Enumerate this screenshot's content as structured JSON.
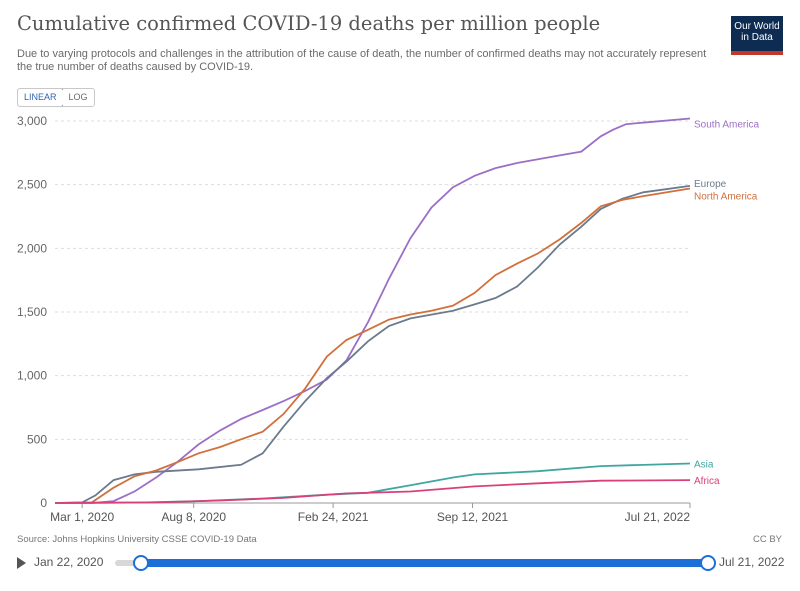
{
  "header": {
    "title": "Cumulative confirmed COVID-19 deaths per million people",
    "subtitle": "Due to varying protocols and challenges in the attribution of the cause of death, the number of confirmed deaths may not accurately represent the true number of deaths caused by COVID-19.",
    "logo_text": "Our World in Data"
  },
  "controls": {
    "linear_label": "LINEAR",
    "log_label": "LOG"
  },
  "footer": {
    "source": "Source: Johns Hopkins University CSSE COVID-19 Data",
    "license": "CC BY"
  },
  "timeline": {
    "start_label": "Jan 22, 2020",
    "end_label": "Jul 21, 2022"
  },
  "colors": {
    "south_america": "#9c6fc6",
    "europe": "#6b7a8c",
    "north_america": "#d0703c",
    "asia": "#3fa6a0",
    "africa": "#d9407a",
    "grid": "#dddddd",
    "accent": "#1d6fd8"
  },
  "chart_data": {
    "type": "line",
    "title": "Cumulative confirmed COVID-19 deaths per million people",
    "xlabel": "",
    "ylabel": "",
    "ylim": [
      0,
      3000
    ],
    "yticks": [
      0,
      500,
      1000,
      1500,
      2000,
      2500,
      3000
    ],
    "ytick_labels": [
      "0",
      "500",
      "1,000",
      "1,500",
      "2,000",
      "2,500",
      "3,000"
    ],
    "xlim": [
      "2020-01-22",
      "2022-07-21"
    ],
    "xticks": [
      "2020-03-01",
      "2020-08-08",
      "2021-02-24",
      "2021-09-12",
      "2022-07-21"
    ],
    "xtick_labels": [
      "Mar 1, 2020",
      "Aug 8, 2020",
      "Feb 24, 2021",
      "Sep 12, 2021",
      "Jul 21, 2022"
    ],
    "grid": true,
    "legend": "right",
    "series": [
      {
        "name": "South America",
        "points": [
          [
            "2020-01-22",
            0
          ],
          [
            "2020-03-15",
            0
          ],
          [
            "2020-04-15",
            15
          ],
          [
            "2020-05-15",
            90
          ],
          [
            "2020-06-15",
            200
          ],
          [
            "2020-07-15",
            320
          ],
          [
            "2020-08-15",
            460
          ],
          [
            "2020-09-15",
            570
          ],
          [
            "2020-10-15",
            660
          ],
          [
            "2020-11-15",
            730
          ],
          [
            "2020-12-15",
            800
          ],
          [
            "2021-01-15",
            880
          ],
          [
            "2021-02-15",
            970
          ],
          [
            "2021-03-15",
            1120
          ],
          [
            "2021-04-15",
            1420
          ],
          [
            "2021-05-15",
            1760
          ],
          [
            "2021-06-15",
            2080
          ],
          [
            "2021-07-15",
            2320
          ],
          [
            "2021-08-15",
            2480
          ],
          [
            "2021-09-15",
            2570
          ],
          [
            "2021-10-15",
            2630
          ],
          [
            "2021-11-15",
            2670
          ],
          [
            "2021-12-15",
            2700
          ],
          [
            "2022-01-15",
            2730
          ],
          [
            "2022-02-15",
            2760
          ],
          [
            "2022-03-15",
            2880
          ],
          [
            "2022-04-01",
            2930
          ],
          [
            "2022-04-20",
            2975
          ],
          [
            "2022-05-20",
            2990
          ],
          [
            "2022-07-21",
            3020
          ]
        ]
      },
      {
        "name": "Europe",
        "points": [
          [
            "2020-01-22",
            0
          ],
          [
            "2020-03-01",
            5
          ],
          [
            "2020-03-20",
            60
          ],
          [
            "2020-04-15",
            180
          ],
          [
            "2020-05-15",
            225
          ],
          [
            "2020-06-15",
            245
          ],
          [
            "2020-08-15",
            265
          ],
          [
            "2020-10-15",
            300
          ],
          [
            "2020-11-15",
            390
          ],
          [
            "2020-12-15",
            600
          ],
          [
            "2021-01-15",
            800
          ],
          [
            "2021-02-15",
            980
          ],
          [
            "2021-03-15",
            1110
          ],
          [
            "2021-04-15",
            1270
          ],
          [
            "2021-05-15",
            1390
          ],
          [
            "2021-06-15",
            1450
          ],
          [
            "2021-08-15",
            1510
          ],
          [
            "2021-09-15",
            1560
          ],
          [
            "2021-10-15",
            1610
          ],
          [
            "2021-11-15",
            1700
          ],
          [
            "2021-12-15",
            1850
          ],
          [
            "2022-01-15",
            2030
          ],
          [
            "2022-02-15",
            2170
          ],
          [
            "2022-03-15",
            2310
          ],
          [
            "2022-04-15",
            2390
          ],
          [
            "2022-05-15",
            2440
          ],
          [
            "2022-07-21",
            2490
          ]
        ]
      },
      {
        "name": "North America",
        "points": [
          [
            "2020-01-22",
            0
          ],
          [
            "2020-03-15",
            5
          ],
          [
            "2020-04-15",
            120
          ],
          [
            "2020-05-15",
            210
          ],
          [
            "2020-06-15",
            255
          ],
          [
            "2020-07-15",
            320
          ],
          [
            "2020-08-15",
            390
          ],
          [
            "2020-09-15",
            440
          ],
          [
            "2020-10-15",
            500
          ],
          [
            "2020-11-15",
            560
          ],
          [
            "2020-12-15",
            700
          ],
          [
            "2021-01-15",
            900
          ],
          [
            "2021-02-15",
            1150
          ],
          [
            "2021-03-15",
            1280
          ],
          [
            "2021-04-15",
            1360
          ],
          [
            "2021-05-15",
            1440
          ],
          [
            "2021-06-15",
            1480
          ],
          [
            "2021-07-15",
            1510
          ],
          [
            "2021-08-15",
            1550
          ],
          [
            "2021-09-15",
            1650
          ],
          [
            "2021-10-15",
            1790
          ],
          [
            "2021-11-15",
            1880
          ],
          [
            "2021-12-15",
            1960
          ],
          [
            "2022-01-15",
            2070
          ],
          [
            "2022-02-15",
            2200
          ],
          [
            "2022-03-15",
            2330
          ],
          [
            "2022-04-15",
            2380
          ],
          [
            "2022-05-15",
            2410
          ],
          [
            "2022-07-21",
            2470
          ]
        ]
      },
      {
        "name": "Asia",
        "points": [
          [
            "2020-01-22",
            0
          ],
          [
            "2020-05-15",
            3
          ],
          [
            "2020-08-15",
            15
          ],
          [
            "2020-11-15",
            35
          ],
          [
            "2021-02-15",
            65
          ],
          [
            "2021-04-15",
            80
          ],
          [
            "2021-06-15",
            140
          ],
          [
            "2021-08-15",
            200
          ],
          [
            "2021-09-15",
            225
          ],
          [
            "2021-12-15",
            250
          ],
          [
            "2022-03-15",
            290
          ],
          [
            "2022-07-21",
            310
          ]
        ]
      },
      {
        "name": "Africa",
        "points": [
          [
            "2020-01-22",
            0
          ],
          [
            "2020-06-15",
            5
          ],
          [
            "2020-09-15",
            20
          ],
          [
            "2020-12-15",
            40
          ],
          [
            "2021-03-15",
            75
          ],
          [
            "2021-06-15",
            90
          ],
          [
            "2021-09-15",
            130
          ],
          [
            "2021-12-15",
            155
          ],
          [
            "2022-03-15",
            175
          ],
          [
            "2022-07-21",
            180
          ]
        ]
      }
    ]
  }
}
